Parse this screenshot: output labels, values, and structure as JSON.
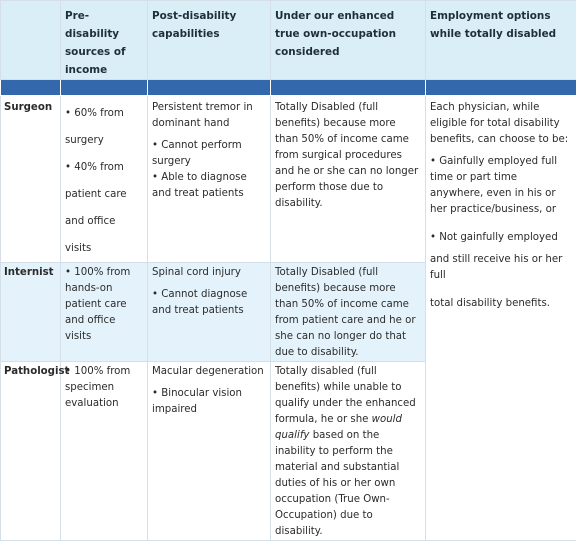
{
  "headers": [
    "",
    "Pre-disability sources of income",
    "Post-disability capabilities",
    "Under our enhanced true own-occupation considered",
    "Employment options while totally disabled"
  ],
  "rows": [
    {
      "label": "Surgeon",
      "sources": [
        "•  60% from surgery",
        "•  40% from patient care and office visits"
      ],
      "capabilities": [
        "Persistent tremor in dominant hand",
        "• Cannot perform surgery",
        "• Able to diagnose and treat patients"
      ],
      "considered": "Totally Disabled (full benefits) because more than 50% of income came from surgical procedures and he or she can no longer perform those due to disability."
    },
    {
      "label": "Internist",
      "sources": [
        "•  100% from hands-on patient care and office visits"
      ],
      "capabilities": [
        "Spinal cord injury",
        "• Cannot diagnose and treat patients"
      ],
      "considered": "Totally Disabled (full benefits) because more than 50% of income came from patient care and he or she can no longer do that due to disability."
    },
    {
      "label": "Pathologist",
      "sources": [
        "•  100% from specimen evaluation"
      ],
      "capabilities": [
        "Macular degeneration",
        "• Binocular vision impaired"
      ],
      "considered_pre": "Totally disabled (full benefits) while unable to qualify under the enhanced formula, he or she ",
      "considered_em": "would qualify",
      "considered_post": " based on the inability to perform the material and substantial duties of his or her own occupation (True Own-Occupation) due to disability."
    }
  ],
  "employment": {
    "intro": "Each physician, while eligible for total disability benefits, can choose to be:",
    "opt1": "• Gainfully employed full time or part time anywhere, even in his or her practice/business, or",
    "opt2": "• Not gainfully employed",
    "opt2b": "and still receive his or her full",
    "opt2c": "total disability benefits."
  }
}
